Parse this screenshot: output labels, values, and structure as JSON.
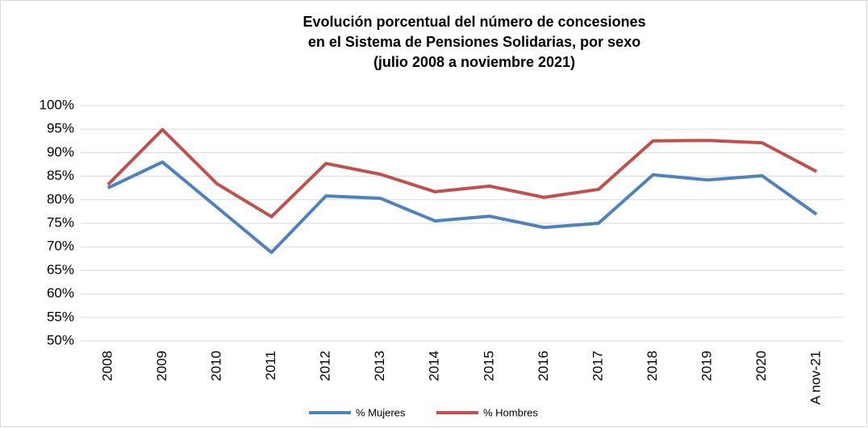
{
  "chart_data": {
    "type": "line",
    "title": [
      "Evolución porcentual del número de concesiones",
      "en el Sistema de Pensiones Solidarias, por sexo",
      "(julio 2008 a noviembre 2021)"
    ],
    "categories": [
      "2008",
      "2009",
      "2010",
      "2011",
      "2012",
      "2013",
      "2014",
      "2015",
      "2016",
      "2017",
      "2018",
      "2019",
      "2020",
      "A nov-21"
    ],
    "series": [
      {
        "name": "% Mujeres",
        "color": "#4f81bd",
        "values": [
          82.5,
          88.0,
          78.4,
          68.8,
          80.8,
          80.3,
          75.5,
          76.5,
          74.1,
          75.0,
          85.3,
          84.2,
          85.1,
          76.9
        ]
      },
      {
        "name": "% Hombres",
        "color": "#c0504d",
        "values": [
          83.2,
          94.9,
          83.4,
          76.4,
          87.7,
          85.4,
          81.7,
          82.9,
          80.5,
          82.2,
          92.5,
          92.6,
          92.1,
          86.0
        ]
      }
    ],
    "ylim": [
      50,
      100
    ],
    "yticks": [
      {
        "value": 50,
        "label": "50%"
      },
      {
        "value": 55,
        "label": "55%"
      },
      {
        "value": 60,
        "label": "60%"
      },
      {
        "value": 65,
        "label": "65%"
      },
      {
        "value": 70,
        "label": "70%"
      },
      {
        "value": 75,
        "label": "75%"
      },
      {
        "value": 80,
        "label": "80%"
      },
      {
        "value": 85,
        "label": "85%"
      },
      {
        "value": 90,
        "label": "90%"
      },
      {
        "value": 95,
        "label": "95%"
      },
      {
        "value": 100,
        "label": "100%"
      }
    ],
    "grid": true,
    "legend": "bottom"
  }
}
